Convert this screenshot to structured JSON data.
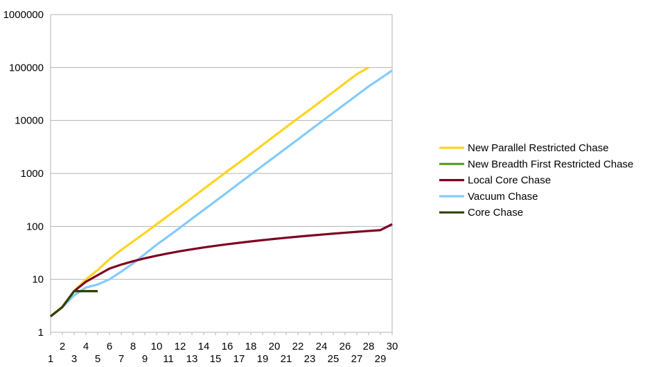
{
  "chart_data": {
    "type": "line",
    "title": "",
    "xlabel": "",
    "ylabel": "",
    "y_scale": "log",
    "ylim": [
      1,
      1000000
    ],
    "xlim": [
      1,
      30
    ],
    "y_tick_labels": [
      "1",
      "10",
      "100",
      "1000",
      "10000",
      "100000",
      "1000000"
    ],
    "x_tick_labels": [
      "1",
      "2",
      "3",
      "4",
      "5",
      "6",
      "7",
      "8",
      "9",
      "10",
      "11",
      "12",
      "13",
      "14",
      "15",
      "16",
      "17",
      "18",
      "19",
      "20",
      "21",
      "22",
      "23",
      "24",
      "25",
      "26",
      "27",
      "28",
      "29",
      "30"
    ],
    "grid": "horizontal",
    "legend_position": "right",
    "series": [
      {
        "name": "New Parallel Restricted Chase",
        "color": "#ffd320",
        "x": [
          1,
          2,
          3,
          4,
          5,
          6,
          7,
          8,
          9,
          10,
          11,
          12,
          13,
          14,
          15,
          16,
          17,
          18,
          19,
          20,
          21,
          22,
          23,
          24,
          25,
          26,
          27,
          28
        ],
        "values": [
          2,
          3,
          6,
          10,
          15,
          24,
          36,
          52,
          75,
          110,
          160,
          235,
          345,
          510,
          750,
          1100,
          1600,
          2350,
          3450,
          5100,
          7500,
          11000,
          16000,
          23500,
          34500,
          51000,
          75000,
          100000
        ]
      },
      {
        "name": "New Breadth First Restricted Chase",
        "color": "#579d1c",
        "x": [
          1,
          2,
          3,
          4,
          5
        ],
        "values": [
          2,
          3,
          6,
          6,
          6
        ]
      },
      {
        "name": "Local Core Chase",
        "color": "#7e0021",
        "x": [
          1,
          2,
          3,
          4,
          5,
          6,
          7,
          8,
          9,
          10,
          11,
          12,
          13,
          14,
          15,
          16,
          17,
          18,
          19,
          20,
          21,
          22,
          23,
          24,
          25,
          26,
          27,
          28,
          29,
          30
        ],
        "values": [
          2,
          3,
          6,
          9,
          12,
          16,
          19,
          22,
          25,
          28,
          31,
          34,
          37,
          40,
          43,
          46,
          49,
          52,
          55,
          58,
          61,
          64,
          67,
          70,
          73,
          76,
          79,
          82,
          85,
          110
        ]
      },
      {
        "name": "Vacuum Chase",
        "color": "#83caff",
        "x": [
          1,
          2,
          3,
          4,
          5,
          6,
          7,
          8,
          9,
          10,
          11,
          12,
          13,
          14,
          15,
          16,
          17,
          18,
          19,
          20,
          21,
          22,
          23,
          24,
          25,
          26,
          27,
          28,
          29,
          30
        ],
        "values": [
          2,
          3,
          5,
          7,
          8,
          10,
          14,
          20,
          30,
          45,
          65,
          95,
          140,
          205,
          300,
          440,
          650,
          950,
          1400,
          2050,
          3000,
          4400,
          6500,
          9500,
          14000,
          20500,
          30000,
          44000,
          62000,
          88000
        ]
      },
      {
        "name": "Core Chase",
        "color": "#314004",
        "x": [
          1,
          2,
          3,
          4,
          5
        ],
        "values": [
          2,
          3,
          6,
          6,
          6
        ]
      }
    ]
  }
}
